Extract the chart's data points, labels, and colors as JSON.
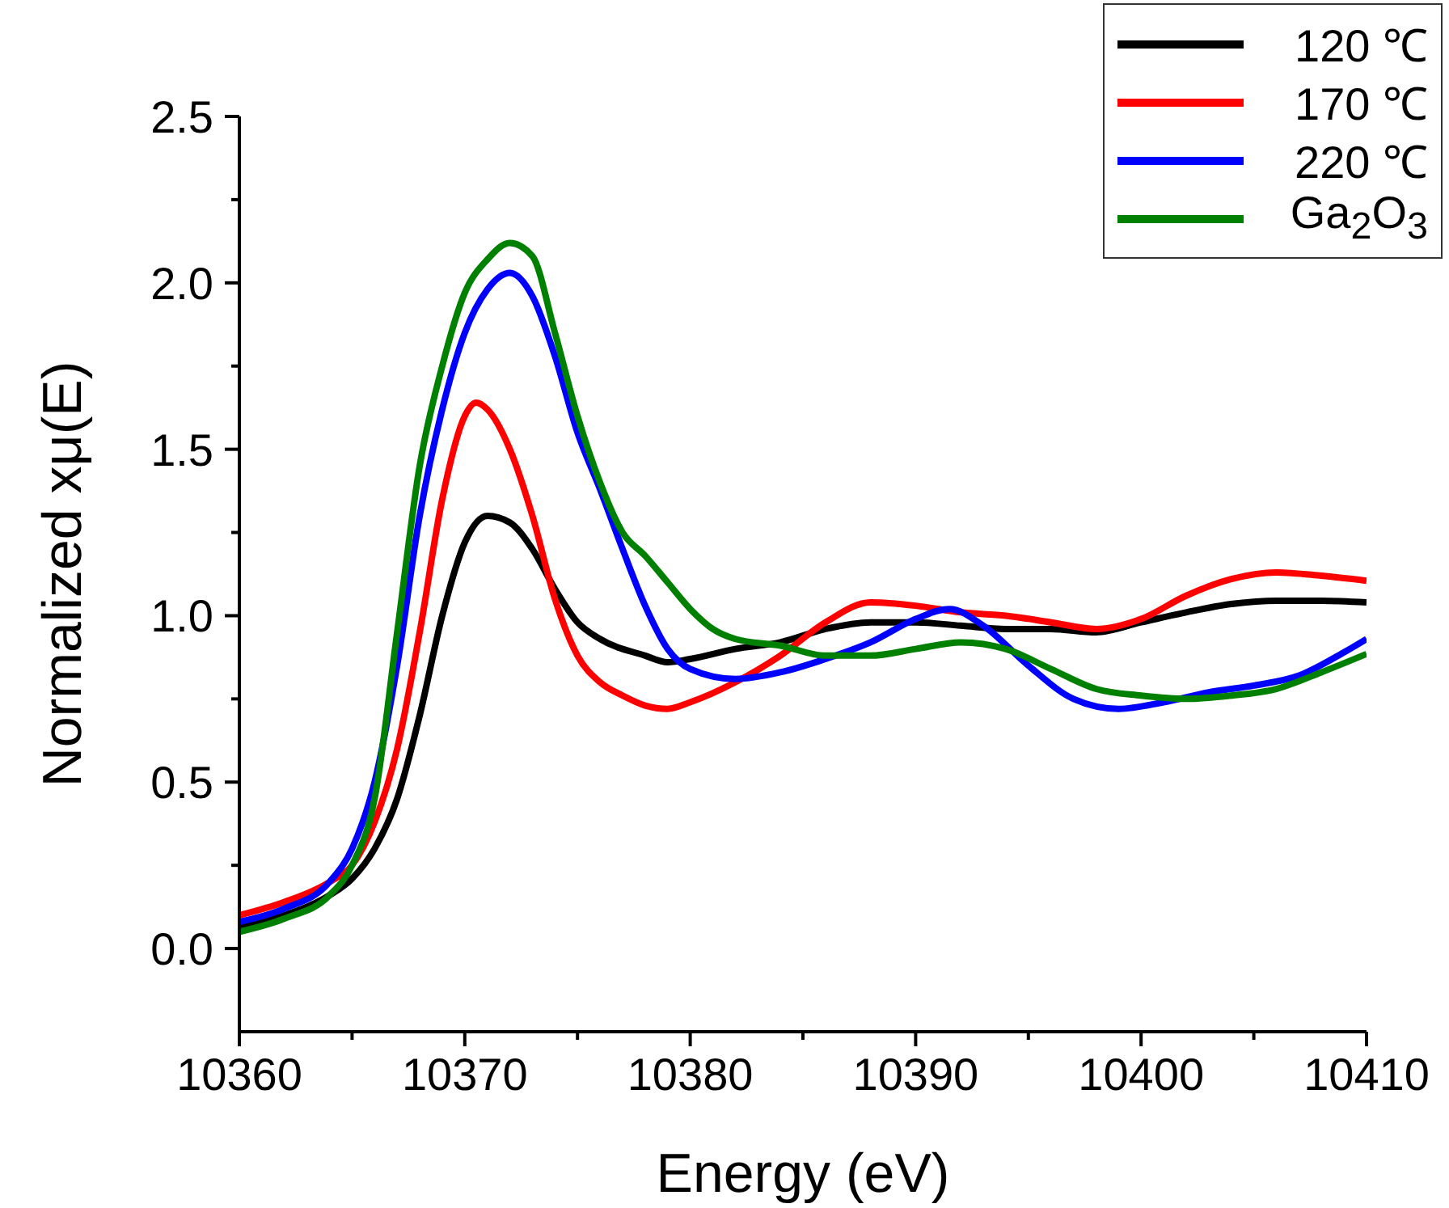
{
  "chart_data": {
    "type": "line",
    "xlabel": "Energy (eV)",
    "ylabel": "Normalized xμ(E)",
    "xlim": [
      10360,
      10410
    ],
    "ylim": [
      -0.25,
      2.5
    ],
    "xticks": [
      10360,
      {
        "value": 10365,
        "label": null
      },
      10370,
      {
        "value": 10375,
        "label": null
      },
      10380,
      {
        "value": 10385,
        "label": null
      },
      10390,
      {
        "value": 10395,
        "label": null
      },
      10400,
      {
        "value": 10405,
        "label": null
      },
      10410
    ],
    "yticks": [
      {
        "value": 0,
        "label": "0.0"
      },
      {
        "value": 0.25,
        "label": null
      },
      {
        "value": 0.5,
        "label": "0.5"
      },
      {
        "value": 0.75,
        "label": null
      },
      {
        "value": 1,
        "label": "1.0"
      },
      {
        "value": 1.25,
        "label": null
      },
      {
        "value": 1.5,
        "label": "1.5"
      },
      {
        "value": 1.75,
        "label": null
      },
      {
        "value": 2,
        "label": "2.0"
      },
      {
        "value": 2.25,
        "label": null
      },
      {
        "value": 2.5,
        "label": "2.5"
      }
    ],
    "legend": "top right",
    "marker": "none",
    "line_style": "solid",
    "series": [
      {
        "name": "120 ℃",
        "color": "#000000",
        "x": [
          10360,
          10362,
          10364,
          10365,
          10366,
          10367,
          10368,
          10369,
          10370,
          10371,
          10372,
          10373,
          10374,
          10375,
          10376,
          10378,
          10379,
          10380,
          10382,
          10384,
          10386,
          10388,
          10390,
          10392,
          10394,
          10396,
          10398,
          10400,
          10402,
          10404,
          10406,
          10408,
          10410
        ],
        "values": [
          0.07,
          0.1,
          0.16,
          0.21,
          0.3,
          0.45,
          0.7,
          1.0,
          1.22,
          1.3,
          1.28,
          1.2,
          1.08,
          0.98,
          0.93,
          0.88,
          0.86,
          0.87,
          0.9,
          0.92,
          0.96,
          0.98,
          0.98,
          0.97,
          0.96,
          0.96,
          0.95,
          0.98,
          1.01,
          1.035,
          1.045,
          1.045,
          1.04
        ]
      },
      {
        "name": "170 ℃",
        "color": "#ff0000",
        "x": [
          10360,
          10362,
          10364,
          10365,
          10366,
          10367,
          10368,
          10369,
          10370,
          10370.5,
          10371,
          10372,
          10373,
          10374,
          10375,
          10376,
          10377,
          10378,
          10379,
          10380,
          10382,
          10384,
          10386,
          10388,
          10390,
          10392,
          10394,
          10396,
          10398,
          10400,
          10402,
          10404,
          10406,
          10408,
          10410
        ],
        "values": [
          0.1,
          0.14,
          0.2,
          0.25,
          0.38,
          0.6,
          0.95,
          1.35,
          1.6,
          1.64,
          1.62,
          1.5,
          1.3,
          1.05,
          0.88,
          0.8,
          0.76,
          0.73,
          0.72,
          0.74,
          0.8,
          0.88,
          0.98,
          1.04,
          1.03,
          1.01,
          1.0,
          0.98,
          0.96,
          0.99,
          1.06,
          1.11,
          1.13,
          1.12,
          1.105
        ]
      },
      {
        "name": "220 ℃",
        "color": "#0000ff",
        "x": [
          10360,
          10362,
          10364,
          10365,
          10366,
          10367,
          10368,
          10369,
          10370,
          10371,
          10372,
          10373,
          10374,
          10375,
          10376,
          10377,
          10378,
          10379,
          10380,
          10382,
          10384,
          10386,
          10388,
          10390,
          10391.5,
          10393,
          10395,
          10397,
          10399,
          10401,
          10403,
          10405,
          10407,
          10409,
          10410
        ],
        "values": [
          0.08,
          0.12,
          0.2,
          0.3,
          0.5,
          0.85,
          1.3,
          1.62,
          1.85,
          1.98,
          2.03,
          1.96,
          1.78,
          1.55,
          1.38,
          1.2,
          1.03,
          0.9,
          0.84,
          0.81,
          0.83,
          0.87,
          0.92,
          0.99,
          1.02,
          0.97,
          0.85,
          0.75,
          0.72,
          0.74,
          0.77,
          0.79,
          0.82,
          0.89,
          0.93
        ]
      },
      {
        "name": "Ga$_{2}$O$_{3}$",
        "color": "#008000",
        "x": [
          10360,
          10362,
          10364,
          10365,
          10366,
          10367,
          10368,
          10369,
          10370,
          10371,
          10372,
          10373,
          10374,
          10375,
          10376,
          10377,
          10378,
          10379,
          10380,
          10381,
          10382,
          10384,
          10386,
          10388,
          10390,
          10392,
          10394,
          10396,
          10398,
          10400,
          10402,
          10404,
          10406,
          10408,
          10410
        ],
        "values": [
          0.05,
          0.09,
          0.16,
          0.25,
          0.45,
          0.95,
          1.45,
          1.75,
          1.97,
          2.07,
          2.12,
          2.08,
          1.85,
          1.6,
          1.4,
          1.25,
          1.18,
          1.1,
          1.02,
          0.96,
          0.93,
          0.91,
          0.88,
          0.88,
          0.9,
          0.92,
          0.9,
          0.84,
          0.78,
          0.76,
          0.75,
          0.76,
          0.78,
          0.83,
          0.885
        ]
      }
    ]
  }
}
